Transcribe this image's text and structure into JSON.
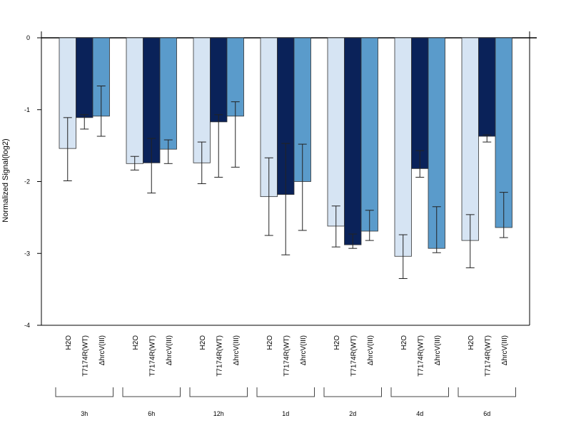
{
  "chart_data": {
    "type": "bar",
    "ylabel": "Normalized Signal(log2)",
    "ylim": [
      -4,
      0
    ],
    "yticks": [
      0,
      -1,
      -2,
      -3,
      -4
    ],
    "ytick_labels": [
      "0",
      "-1",
      "-2",
      "-3",
      "-4"
    ],
    "categories": [
      "3h",
      "6h",
      "12h",
      "1d",
      "2d",
      "4d",
      "6d"
    ],
    "series": [
      {
        "name": "H2O",
        "color": "#d6e4f3",
        "values": [
          -1.54,
          -1.75,
          -1.74,
          -2.21,
          -2.62,
          -3.04,
          -2.82
        ],
        "err_low": [
          -1.99,
          -1.84,
          -2.03,
          -2.75,
          -2.91,
          -3.35,
          -3.2
        ],
        "err_high": [
          -1.11,
          -1.65,
          -1.45,
          -1.67,
          -2.34,
          -2.74,
          -2.46
        ]
      },
      {
        "name": "T7174R(WT)",
        "color": "#0a2259",
        "values": [
          -1.11,
          -1.74,
          -1.17,
          -2.18,
          -2.88,
          -1.82,
          -1.37
        ],
        "err_low": [
          -1.27,
          -2.16,
          -1.94,
          -3.02,
          -2.93,
          -1.94,
          -1.45
        ],
        "err_high": [
          -1.07,
          -1.4,
          -1.07,
          -1.47,
          -2.73,
          -1.57,
          -1.35
        ]
      },
      {
        "name": "ΔhrcV(III)",
        "color": "#5a9bcb",
        "values": [
          -1.09,
          -1.55,
          -1.09,
          -2.0,
          -2.69,
          -2.93,
          -2.64
        ],
        "err_low": [
          -1.37,
          -1.75,
          -1.8,
          -2.68,
          -2.82,
          -2.99,
          -2.78
        ],
        "err_high": [
          -0.67,
          -1.42,
          -0.89,
          -1.48,
          -2.4,
          -2.35,
          -2.15
        ]
      }
    ],
    "bar_labels": [
      "H2O",
      "T7174R(WT)",
      "ΔhrcV(III)"
    ],
    "grid": false,
    "legend": "none"
  }
}
